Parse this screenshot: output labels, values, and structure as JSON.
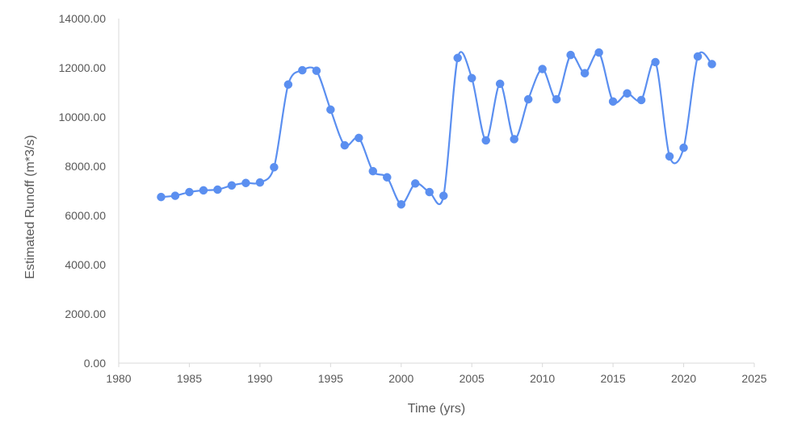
{
  "chart_data": {
    "type": "scatter",
    "title": "",
    "xlabel": "Time (yrs)",
    "ylabel": "Estimated Runoff (m*3/s)",
    "xlim": [
      1980,
      2025
    ],
    "ylim": [
      0,
      14000
    ],
    "x_ticks": [
      "1980",
      "1985",
      "1990",
      "1995",
      "2000",
      "2005",
      "2010",
      "2015",
      "2020",
      "2025"
    ],
    "y_ticks": [
      "0.00",
      "2000.00",
      "4000.00",
      "6000.00",
      "8000.00",
      "10000.00",
      "12000.00",
      "14000.00"
    ],
    "grid": false,
    "legend": "none",
    "line_style": "smooth",
    "color": "#5B8FF0",
    "series": [
      {
        "x": [
          1983,
          1984,
          1985,
          1986,
          1987,
          1988,
          1989,
          1990,
          1991,
          1992,
          1993,
          1994,
          1995,
          1996,
          1997,
          1998,
          1999,
          2000,
          2001,
          2002,
          2003,
          2004,
          2005,
          2006,
          2007,
          2008,
          2009,
          2010,
          2011,
          2012,
          2013,
          2014,
          2015,
          2016,
          2017,
          2018,
          2019,
          2020,
          2021,
          2022
        ],
        "y": [
          6750,
          6800,
          6950,
          7020,
          7050,
          7220,
          7320,
          7340,
          7960,
          11320,
          11900,
          11880,
          10300,
          8850,
          9150,
          7800,
          7550,
          6450,
          7300,
          6950,
          6800,
          12400,
          11580,
          9050,
          11350,
          9100,
          10720,
          11950,
          10720,
          12520,
          11780,
          12620,
          10630,
          10960,
          10690,
          12230,
          8400,
          8750,
          12460,
          12150
        ]
      }
    ]
  }
}
